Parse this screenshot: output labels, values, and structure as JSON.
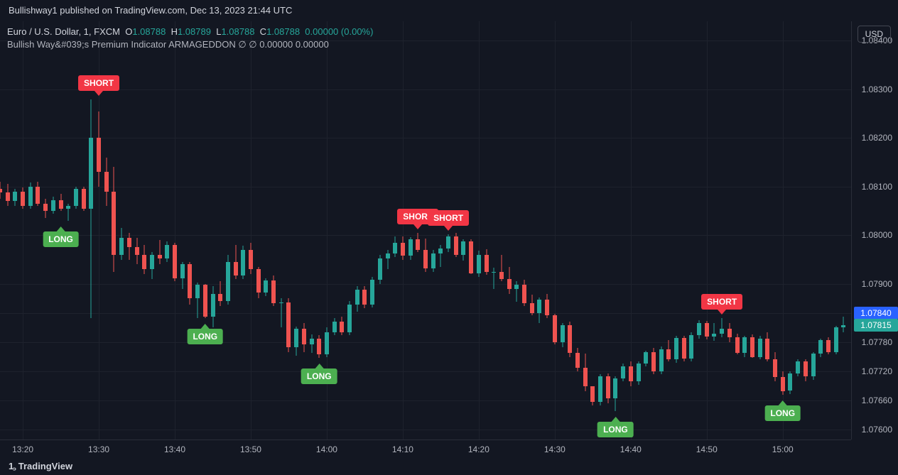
{
  "header": {
    "publish_text": "Bullishway1 published on TradingView.com, Dec 13, 2023 21:44 UTC"
  },
  "badge_currency": "USD",
  "legend": {
    "symbol": "Euro / U.S. Dollar",
    "interval": "1",
    "exchange": "FXCM",
    "o_label": "O",
    "o": "1.08788",
    "h_label": "H",
    "h": "1.08789",
    "l_label": "L",
    "l": "1.08788",
    "c_label": "C",
    "c": "1.08788",
    "change": "0.00000",
    "change_pct": "(0.00%)",
    "indicator_line": "Bullish Way&#039;s Premium Indicator ARMAGEDDON  ∅  ∅   0.00000  0.00000"
  },
  "footer_brand": "TradingView",
  "style": {
    "bg": "#131722",
    "grid": "#1e222d",
    "axis_border": "#2a2e39",
    "text_primary": "#d1d4dc",
    "text_secondary": "#b2b5be",
    "green": "#26a69a",
    "red": "#ef5350",
    "long_bg": "#4caf50",
    "short_bg": "#f23645",
    "price_tag_bg": "#26a69a",
    "price_tag_text": "#ffffff",
    "countdown_bg": "#2962ff"
  },
  "chart": {
    "type": "candlestick",
    "price_min": 1.0758,
    "price_max": 1.0844,
    "time_start_min": 797,
    "time_end_min": 909,
    "y_ticks": [
      1.084,
      1.083,
      1.082,
      1.081,
      1.08,
      1.079,
      1.0784,
      1.0778,
      1.0772,
      1.0766,
      1.076
    ],
    "x_ticks": [
      {
        "min": 800,
        "label": "13:20"
      },
      {
        "min": 810,
        "label": "13:30"
      },
      {
        "min": 820,
        "label": "13:40"
      },
      {
        "min": 830,
        "label": "13:50"
      },
      {
        "min": 840,
        "label": "14:00"
      },
      {
        "min": 850,
        "label": "14:10"
      },
      {
        "min": 860,
        "label": "14:20"
      },
      {
        "min": 870,
        "label": "14:30"
      },
      {
        "min": 880,
        "label": "14:40"
      },
      {
        "min": 890,
        "label": "14:50"
      },
      {
        "min": 900,
        "label": "15:00"
      }
    ],
    "last_price": 1.07815,
    "last_price_label": "1.07815",
    "countdown_price": 1.0784,
    "countdown_label": "1.07840",
    "candle_width": 8,
    "candles": [
      {
        "t": 797,
        "o": 1.08095,
        "h": 1.0811,
        "l": 1.08075,
        "c": 1.08088
      },
      {
        "t": 798,
        "o": 1.08088,
        "h": 1.08105,
        "l": 1.0806,
        "c": 1.0807
      },
      {
        "t": 799,
        "o": 1.0807,
        "h": 1.08095,
        "l": 1.0806,
        "c": 1.0809
      },
      {
        "t": 800,
        "o": 1.0809,
        "h": 1.08098,
        "l": 1.08055,
        "c": 1.0806
      },
      {
        "t": 801,
        "o": 1.0806,
        "h": 1.08108,
        "l": 1.08055,
        "c": 1.081
      },
      {
        "t": 802,
        "o": 1.081,
        "h": 1.0811,
        "l": 1.0806,
        "c": 1.08065
      },
      {
        "t": 803,
        "o": 1.08065,
        "h": 1.08075,
        "l": 1.08035,
        "c": 1.0805
      },
      {
        "t": 804,
        "o": 1.0805,
        "h": 1.0808,
        "l": 1.08045,
        "c": 1.08072
      },
      {
        "t": 805,
        "o": 1.08072,
        "h": 1.08085,
        "l": 1.0805,
        "c": 1.08055
      },
      {
        "t": 806,
        "o": 1.08055,
        "h": 1.08065,
        "l": 1.0803,
        "c": 1.0806
      },
      {
        "t": 807,
        "o": 1.0806,
        "h": 1.081,
        "l": 1.08055,
        "c": 1.08095
      },
      {
        "t": 808,
        "o": 1.08095,
        "h": 1.081,
        "l": 1.0805,
        "c": 1.08055
      },
      {
        "t": 809,
        "o": 1.08055,
        "h": 1.0828,
        "l": 1.0783,
        "c": 1.082
      },
      {
        "t": 810,
        "o": 1.082,
        "h": 1.08255,
        "l": 1.081,
        "c": 1.0813
      },
      {
        "t": 811,
        "o": 1.0813,
        "h": 1.0816,
        "l": 1.0806,
        "c": 1.0809
      },
      {
        "t": 812,
        "o": 1.0809,
        "h": 1.0814,
        "l": 1.07925,
        "c": 1.0796
      },
      {
        "t": 813,
        "o": 1.0796,
        "h": 1.08015,
        "l": 1.0795,
        "c": 1.07995
      },
      {
        "t": 814,
        "o": 1.07995,
        "h": 1.08005,
        "l": 1.0795,
        "c": 1.07975
      },
      {
        "t": 815,
        "o": 1.07975,
        "h": 1.07995,
        "l": 1.0794,
        "c": 1.0796
      },
      {
        "t": 816,
        "o": 1.0796,
        "h": 1.0798,
        "l": 1.0792,
        "c": 1.0793
      },
      {
        "t": 817,
        "o": 1.0793,
        "h": 1.07965,
        "l": 1.0791,
        "c": 1.0796
      },
      {
        "t": 818,
        "o": 1.0796,
        "h": 1.0799,
        "l": 1.0794,
        "c": 1.07952
      },
      {
        "t": 819,
        "o": 1.07952,
        "h": 1.07988,
        "l": 1.07945,
        "c": 1.0798
      },
      {
        "t": 820,
        "o": 1.0798,
        "h": 1.07985,
        "l": 1.07905,
        "c": 1.07912
      },
      {
        "t": 821,
        "o": 1.07912,
        "h": 1.07945,
        "l": 1.0789,
        "c": 1.0794
      },
      {
        "t": 822,
        "o": 1.0794,
        "h": 1.07945,
        "l": 1.07858,
        "c": 1.0787
      },
      {
        "t": 823,
        "o": 1.0787,
        "h": 1.07903,
        "l": 1.0783,
        "c": 1.07898
      },
      {
        "t": 824,
        "o": 1.07898,
        "h": 1.079,
        "l": 1.0783,
        "c": 1.07832
      },
      {
        "t": 825,
        "o": 1.07832,
        "h": 1.07895,
        "l": 1.0781,
        "c": 1.0788
      },
      {
        "t": 826,
        "o": 1.0788,
        "h": 1.07905,
        "l": 1.07855,
        "c": 1.07865
      },
      {
        "t": 827,
        "o": 1.07865,
        "h": 1.0796,
        "l": 1.07858,
        "c": 1.07945
      },
      {
        "t": 828,
        "o": 1.07945,
        "h": 1.0798,
        "l": 1.0791,
        "c": 1.07918
      },
      {
        "t": 829,
        "o": 1.07918,
        "h": 1.07978,
        "l": 1.0791,
        "c": 1.0797
      },
      {
        "t": 830,
        "o": 1.0797,
        "h": 1.07985,
        "l": 1.0792,
        "c": 1.0793
      },
      {
        "t": 831,
        "o": 1.0793,
        "h": 1.07935,
        "l": 1.0787,
        "c": 1.07882
      },
      {
        "t": 832,
        "o": 1.07882,
        "h": 1.07912,
        "l": 1.07875,
        "c": 1.07907
      },
      {
        "t": 833,
        "o": 1.07907,
        "h": 1.07918,
        "l": 1.07855,
        "c": 1.0786
      },
      {
        "t": 834,
        "o": 1.0786,
        "h": 1.0787,
        "l": 1.0781,
        "c": 1.07862
      },
      {
        "t": 835,
        "o": 1.07862,
        "h": 1.0787,
        "l": 1.0776,
        "c": 1.0777
      },
      {
        "t": 836,
        "o": 1.0777,
        "h": 1.07812,
        "l": 1.07752,
        "c": 1.07808
      },
      {
        "t": 837,
        "o": 1.07808,
        "h": 1.0782,
        "l": 1.0776,
        "c": 1.07775
      },
      {
        "t": 838,
        "o": 1.07775,
        "h": 1.07796,
        "l": 1.07758,
        "c": 1.07788
      },
      {
        "t": 839,
        "o": 1.07788,
        "h": 1.07795,
        "l": 1.07748,
        "c": 1.07755
      },
      {
        "t": 840,
        "o": 1.07755,
        "h": 1.0781,
        "l": 1.0775,
        "c": 1.078
      },
      {
        "t": 841,
        "o": 1.078,
        "h": 1.0783,
        "l": 1.07795,
        "c": 1.07822
      },
      {
        "t": 842,
        "o": 1.07822,
        "h": 1.07833,
        "l": 1.07795,
        "c": 1.078
      },
      {
        "t": 843,
        "o": 1.078,
        "h": 1.07865,
        "l": 1.07795,
        "c": 1.07858
      },
      {
        "t": 844,
        "o": 1.07858,
        "h": 1.07895,
        "l": 1.07843,
        "c": 1.07888
      },
      {
        "t": 845,
        "o": 1.07888,
        "h": 1.07895,
        "l": 1.0785,
        "c": 1.07858
      },
      {
        "t": 846,
        "o": 1.07858,
        "h": 1.07915,
        "l": 1.07852,
        "c": 1.07908
      },
      {
        "t": 847,
        "o": 1.07908,
        "h": 1.0796,
        "l": 1.079,
        "c": 1.07952
      },
      {
        "t": 848,
        "o": 1.07952,
        "h": 1.0797,
        "l": 1.0793,
        "c": 1.07963
      },
      {
        "t": 849,
        "o": 1.07963,
        "h": 1.07998,
        "l": 1.07955,
        "c": 1.07984
      },
      {
        "t": 850,
        "o": 1.07984,
        "h": 1.07998,
        "l": 1.0795,
        "c": 1.07958
      },
      {
        "t": 851,
        "o": 1.07958,
        "h": 1.07996,
        "l": 1.0795,
        "c": 1.07992
      },
      {
        "t": 852,
        "o": 1.07992,
        "h": 1.08005,
        "l": 1.07965,
        "c": 1.0797
      },
      {
        "t": 853,
        "o": 1.0797,
        "h": 1.07993,
        "l": 1.07925,
        "c": 1.07932
      },
      {
        "t": 854,
        "o": 1.07932,
        "h": 1.0797,
        "l": 1.07925,
        "c": 1.07962
      },
      {
        "t": 855,
        "o": 1.07962,
        "h": 1.0798,
        "l": 1.07935,
        "c": 1.07973
      },
      {
        "t": 856,
        "o": 1.07973,
        "h": 1.08002,
        "l": 1.07965,
        "c": 1.07997
      },
      {
        "t": 857,
        "o": 1.07997,
        "h": 1.08005,
        "l": 1.07955,
        "c": 1.0796
      },
      {
        "t": 858,
        "o": 1.0796,
        "h": 1.07992,
        "l": 1.07948,
        "c": 1.07988
      },
      {
        "t": 859,
        "o": 1.07988,
        "h": 1.07992,
        "l": 1.0792,
        "c": 1.07922
      },
      {
        "t": 860,
        "o": 1.07922,
        "h": 1.07968,
        "l": 1.07915,
        "c": 1.0796
      },
      {
        "t": 861,
        "o": 1.0796,
        "h": 1.07972,
        "l": 1.07918,
        "c": 1.07925
      },
      {
        "t": 862,
        "o": 1.07925,
        "h": 1.07933,
        "l": 1.0789,
        "c": 1.07925
      },
      {
        "t": 863,
        "o": 1.07925,
        "h": 1.0796,
        "l": 1.07905,
        "c": 1.0791
      },
      {
        "t": 864,
        "o": 1.0791,
        "h": 1.07935,
        "l": 1.0788,
        "c": 1.0789
      },
      {
        "t": 865,
        "o": 1.0789,
        "h": 1.07905,
        "l": 1.07863,
        "c": 1.07898
      },
      {
        "t": 866,
        "o": 1.07898,
        "h": 1.07908,
        "l": 1.07855,
        "c": 1.0786
      },
      {
        "t": 867,
        "o": 1.0786,
        "h": 1.07878,
        "l": 1.07835,
        "c": 1.0784
      },
      {
        "t": 868,
        "o": 1.0784,
        "h": 1.07872,
        "l": 1.0782,
        "c": 1.07868
      },
      {
        "t": 869,
        "o": 1.07868,
        "h": 1.0788,
        "l": 1.0783,
        "c": 1.07835
      },
      {
        "t": 870,
        "o": 1.07835,
        "h": 1.07838,
        "l": 1.07775,
        "c": 1.0778
      },
      {
        "t": 871,
        "o": 1.0778,
        "h": 1.0782,
        "l": 1.0777,
        "c": 1.07815
      },
      {
        "t": 872,
        "o": 1.07815,
        "h": 1.07822,
        "l": 1.0775,
        "c": 1.07758
      },
      {
        "t": 873,
        "o": 1.07758,
        "h": 1.07768,
        "l": 1.0772,
        "c": 1.07728
      },
      {
        "t": 874,
        "o": 1.07728,
        "h": 1.07756,
        "l": 1.0768,
        "c": 1.0769
      },
      {
        "t": 875,
        "o": 1.0769,
        "h": 1.0769,
        "l": 1.0765,
        "c": 1.07658
      },
      {
        "t": 876,
        "o": 1.07658,
        "h": 1.07715,
        "l": 1.0765,
        "c": 1.0771
      },
      {
        "t": 877,
        "o": 1.0771,
        "h": 1.07716,
        "l": 1.07655,
        "c": 1.07665
      },
      {
        "t": 878,
        "o": 1.07665,
        "h": 1.0771,
        "l": 1.07638,
        "c": 1.07706
      },
      {
        "t": 879,
        "o": 1.07706,
        "h": 1.07736,
        "l": 1.077,
        "c": 1.0773
      },
      {
        "t": 880,
        "o": 1.0773,
        "h": 1.0774,
        "l": 1.0769,
        "c": 1.077
      },
      {
        "t": 881,
        "o": 1.077,
        "h": 1.0774,
        "l": 1.07693,
        "c": 1.07736
      },
      {
        "t": 882,
        "o": 1.07736,
        "h": 1.07763,
        "l": 1.0773,
        "c": 1.0776
      },
      {
        "t": 883,
        "o": 1.0776,
        "h": 1.07768,
        "l": 1.07715,
        "c": 1.0772
      },
      {
        "t": 884,
        "o": 1.0772,
        "h": 1.07772,
        "l": 1.07715,
        "c": 1.07766
      },
      {
        "t": 885,
        "o": 1.07766,
        "h": 1.07785,
        "l": 1.0774,
        "c": 1.07745
      },
      {
        "t": 886,
        "o": 1.07745,
        "h": 1.07793,
        "l": 1.07738,
        "c": 1.07789
      },
      {
        "t": 887,
        "o": 1.07789,
        "h": 1.07793,
        "l": 1.0774,
        "c": 1.07746
      },
      {
        "t": 888,
        "o": 1.07746,
        "h": 1.078,
        "l": 1.0774,
        "c": 1.07795
      },
      {
        "t": 889,
        "o": 1.07795,
        "h": 1.07826,
        "l": 1.07788,
        "c": 1.0782
      },
      {
        "t": 890,
        "o": 1.0782,
        "h": 1.07824,
        "l": 1.07786,
        "c": 1.07792
      },
      {
        "t": 891,
        "o": 1.07792,
        "h": 1.0782,
        "l": 1.07783,
        "c": 1.07798
      },
      {
        "t": 892,
        "o": 1.07798,
        "h": 1.0783,
        "l": 1.0779,
        "c": 1.07808
      },
      {
        "t": 893,
        "o": 1.07808,
        "h": 1.0782,
        "l": 1.0778,
        "c": 1.0779
      },
      {
        "t": 894,
        "o": 1.0779,
        "h": 1.07798,
        "l": 1.07755,
        "c": 1.07758
      },
      {
        "t": 895,
        "o": 1.07758,
        "h": 1.07793,
        "l": 1.0775,
        "c": 1.0779
      },
      {
        "t": 896,
        "o": 1.0779,
        "h": 1.07796,
        "l": 1.07748,
        "c": 1.0775
      },
      {
        "t": 897,
        "o": 1.0775,
        "h": 1.07793,
        "l": 1.07745,
        "c": 1.07788
      },
      {
        "t": 898,
        "o": 1.07788,
        "h": 1.078,
        "l": 1.0774,
        "c": 1.07745
      },
      {
        "t": 899,
        "o": 1.07745,
        "h": 1.0776,
        "l": 1.077,
        "c": 1.07708
      },
      {
        "t": 900,
        "o": 1.07708,
        "h": 1.0772,
        "l": 1.07672,
        "c": 1.0768
      },
      {
        "t": 901,
        "o": 1.0768,
        "h": 1.0772,
        "l": 1.07673,
        "c": 1.07716
      },
      {
        "t": 902,
        "o": 1.07716,
        "h": 1.07745,
        "l": 1.0771,
        "c": 1.0774
      },
      {
        "t": 903,
        "o": 1.0774,
        "h": 1.07745,
        "l": 1.077,
        "c": 1.0771
      },
      {
        "t": 904,
        "o": 1.0771,
        "h": 1.0776,
        "l": 1.07702,
        "c": 1.07756
      },
      {
        "t": 905,
        "o": 1.07756,
        "h": 1.07788,
        "l": 1.0775,
        "c": 1.07785
      },
      {
        "t": 906,
        "o": 1.07785,
        "h": 1.0779,
        "l": 1.07755,
        "c": 1.0776
      },
      {
        "t": 907,
        "o": 1.0776,
        "h": 1.07813,
        "l": 1.07755,
        "c": 1.0781
      },
      {
        "t": 908,
        "o": 1.0781,
        "h": 1.07832,
        "l": 1.078,
        "c": 1.07815
      }
    ],
    "markers": [
      {
        "t": 805,
        "type": "LONG",
        "label": "LONG",
        "anchor": "below",
        "price": 1.0803
      },
      {
        "t": 810,
        "type": "SHORT",
        "label": "SHORT",
        "anchor": "above",
        "price": 1.0828
      },
      {
        "t": 824,
        "type": "LONG",
        "label": "LONG",
        "anchor": "below",
        "price": 1.0783
      },
      {
        "t": 839,
        "type": "LONG",
        "label": "LONG",
        "anchor": "below",
        "price": 1.07748
      },
      {
        "t": 852,
        "type": "SHORT",
        "label": "SHORT",
        "anchor": "above",
        "price": 1.08005
      },
      {
        "t": 856,
        "type": "SHORT",
        "label": "SHORT",
        "anchor": "above",
        "price": 1.08002
      },
      {
        "t": 878,
        "type": "LONG",
        "label": "LONG",
        "anchor": "below",
        "price": 1.07638
      },
      {
        "t": 892,
        "type": "SHORT",
        "label": "SHORT",
        "anchor": "above",
        "price": 1.0783
      },
      {
        "t": 900,
        "type": "LONG",
        "label": "LONG",
        "anchor": "below",
        "price": 1.07672
      }
    ]
  }
}
